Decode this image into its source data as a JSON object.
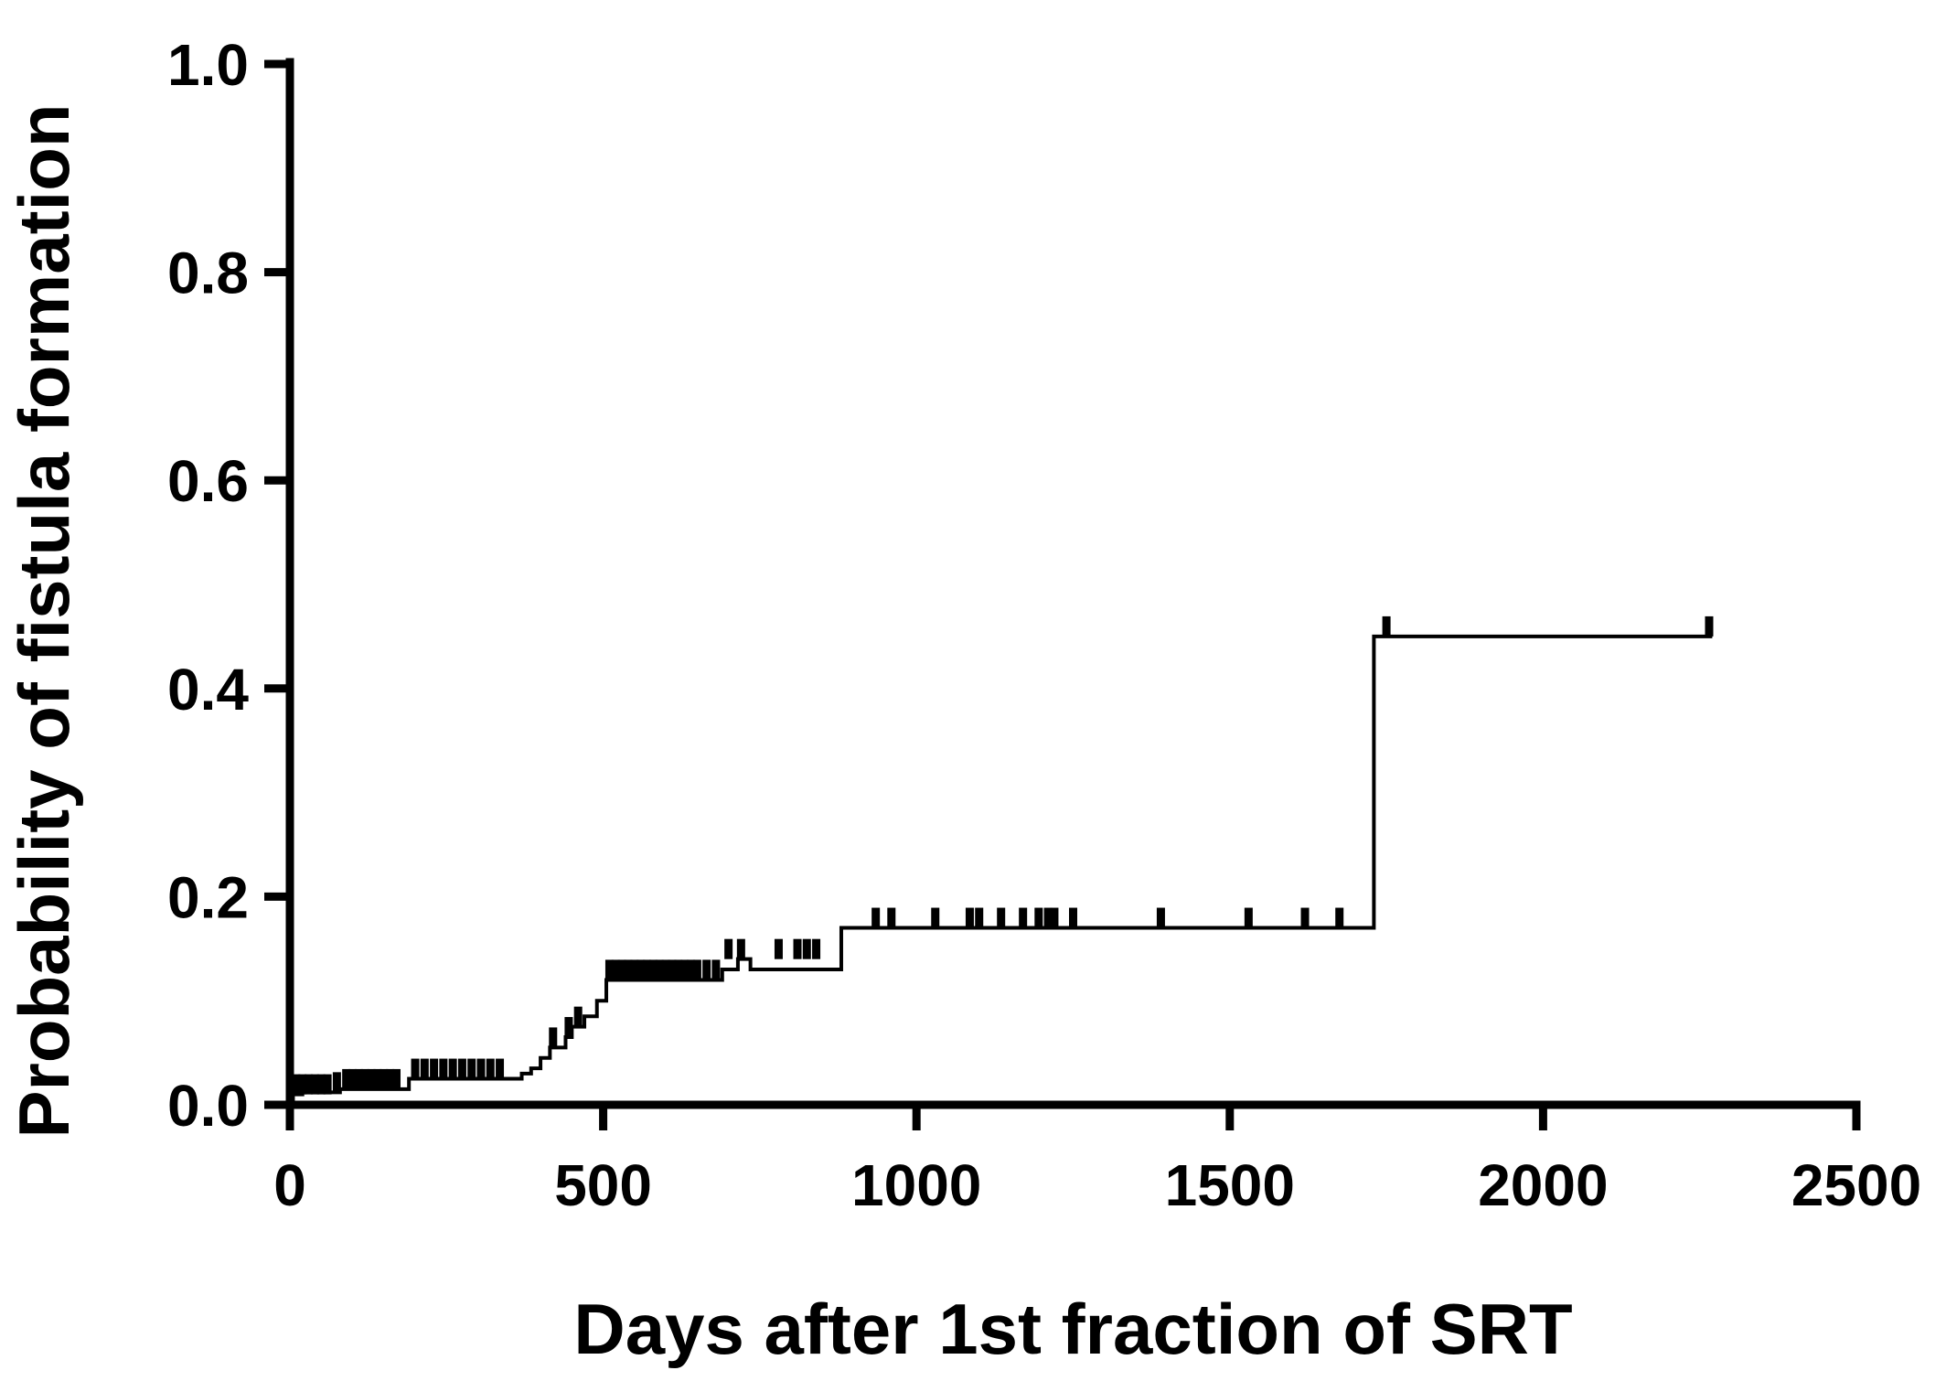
{
  "chart_data": {
    "type": "line",
    "title": "",
    "xlabel": "Days after 1st fraction of SRT",
    "ylabel": "Probability of fistula formation",
    "xlim": [
      0,
      2500
    ],
    "ylim": [
      0,
      1.0
    ],
    "x_ticks": [
      0,
      500,
      1000,
      1500,
      2000,
      2500
    ],
    "x_tick_labels": [
      "0",
      "500",
      "1000",
      "1500",
      "2000",
      "2500"
    ],
    "y_ticks": [
      0.0,
      0.2,
      0.4,
      0.6,
      0.8,
      1.0
    ],
    "y_tick_labels": [
      "0.0",
      "0.2",
      "0.4",
      "0.6",
      "0.8",
      "1.0"
    ],
    "grid": false,
    "legend": "none",
    "series": [
      {
        "style": "step",
        "color": "#000000",
        "x": [
          0,
          5,
          20,
          80,
          180,
          190,
          350,
          370,
          385,
          400,
          415,
          440,
          450,
          470,
          490,
          505,
          575,
          690,
          715,
          735,
          880,
          1730,
          2270
        ],
        "y": [
          0.0,
          0.01,
          0.012,
          0.015,
          0.015,
          0.025,
          0.025,
          0.03,
          0.035,
          0.045,
          0.055,
          0.065,
          0.075,
          0.085,
          0.1,
          0.12,
          0.12,
          0.13,
          0.14,
          0.13,
          0.17,
          0.45,
          0.45
        ],
        "censor_x": [
          10,
          20,
          30,
          40,
          50,
          60,
          75,
          90,
          100,
          110,
          120,
          130,
          140,
          150,
          160,
          170,
          200,
          215,
          230,
          245,
          260,
          275,
          290,
          305,
          320,
          335,
          420,
          445,
          460,
          510,
          520,
          530,
          540,
          550,
          560,
          570,
          580,
          590,
          600,
          610,
          620,
          630,
          640,
          650,
          665,
          680,
          700,
          720,
          780,
          810,
          825,
          840,
          935,
          960,
          1030,
          1085,
          1100,
          1135,
          1170,
          1195,
          1210,
          1220,
          1250,
          1390,
          1530,
          1620,
          1675,
          1750,
          2265
        ],
        "censor_y": [
          0.01,
          0.01,
          0.01,
          0.01,
          0.01,
          0.01,
          0.012,
          0.015,
          0.015,
          0.015,
          0.015,
          0.015,
          0.015,
          0.015,
          0.015,
          0.015,
          0.025,
          0.025,
          0.025,
          0.025,
          0.025,
          0.025,
          0.025,
          0.025,
          0.025,
          0.025,
          0.055,
          0.065,
          0.075,
          0.12,
          0.12,
          0.12,
          0.12,
          0.12,
          0.12,
          0.12,
          0.12,
          0.12,
          0.12,
          0.12,
          0.12,
          0.12,
          0.12,
          0.12,
          0.12,
          0.12,
          0.14,
          0.14,
          0.14,
          0.14,
          0.14,
          0.14,
          0.17,
          0.17,
          0.17,
          0.17,
          0.17,
          0.17,
          0.17,
          0.17,
          0.17,
          0.17,
          0.17,
          0.17,
          0.17,
          0.17,
          0.17,
          0.45,
          0.45
        ]
      }
    ]
  }
}
